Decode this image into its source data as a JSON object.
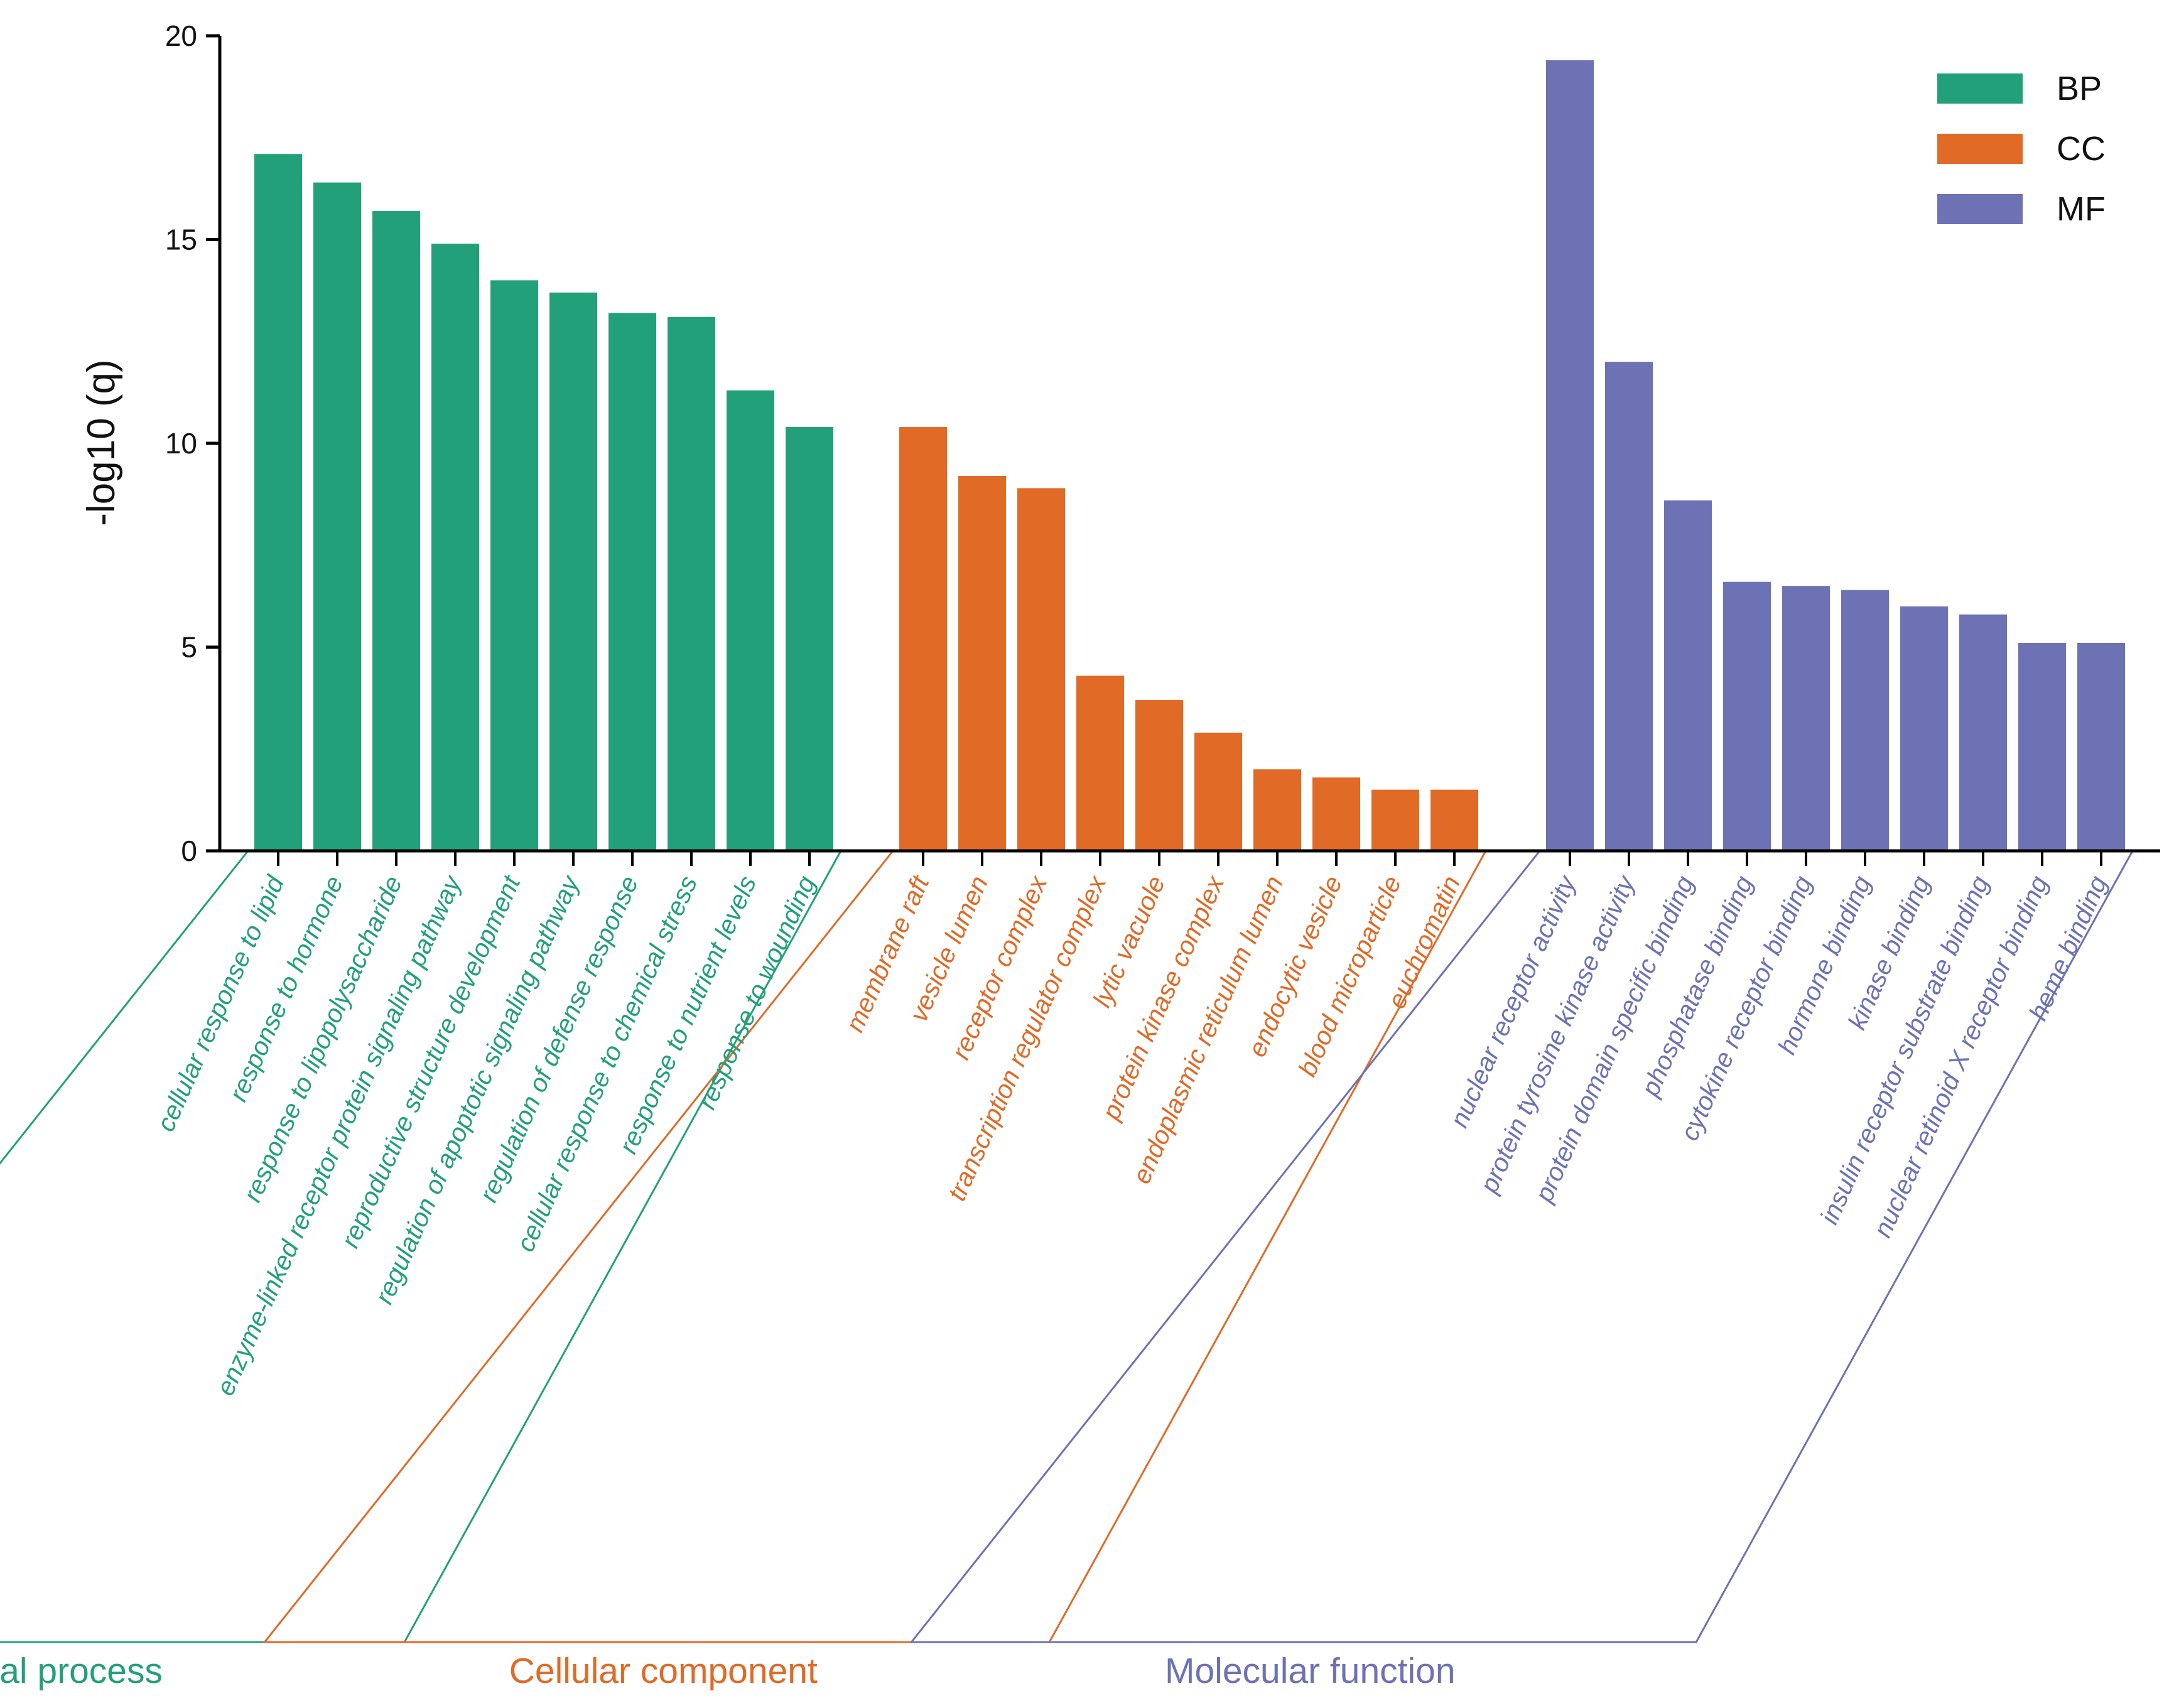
{
  "chart_data": {
    "type": "bar",
    "title": "",
    "xlabel": "",
    "ylabel": "-log10 (q)",
    "ylim": [
      0,
      20
    ],
    "yticks": [
      0,
      5,
      10,
      15,
      20
    ],
    "grid": false,
    "legend_position": "top-right",
    "legend": [
      {
        "label": "BP",
        "color": "#22a07a"
      },
      {
        "label": "CC",
        "color": "#e06a26"
      },
      {
        "label": "MF",
        "color": "#6c72b4"
      }
    ],
    "groups": [
      {
        "key": "BP",
        "name": "Biological process",
        "color": "#22a07a",
        "categories": [
          "cellular response to lipid",
          "response to hormone",
          "response to lipopolysaccharide",
          "enzyme-linked receptor protein signaling pathway",
          "reproductive structure development",
          "regulation of apoptotic signaling pathway",
          "regulation of defense response",
          "cellular response to chemical stress",
          "response to nutrient levels",
          "response to wounding"
        ],
        "values": [
          17.1,
          16.4,
          15.7,
          14.9,
          14.0,
          13.7,
          13.2,
          13.1,
          11.3,
          10.4
        ]
      },
      {
        "key": "CC",
        "name": "Cellular component",
        "color": "#e06a26",
        "categories": [
          "membrane raft",
          "vesicle lumen",
          "receptor complex",
          "transcription regulator complex",
          "lytic vacuole",
          "protein kinase complex",
          "endoplasmic reticulum lumen",
          "endocytic vesicle",
          "blood microparticle",
          "euchromatin"
        ],
        "values": [
          10.4,
          9.2,
          8.9,
          4.3,
          3.7,
          2.9,
          2.0,
          1.8,
          1.5,
          1.5
        ]
      },
      {
        "key": "MF",
        "name": "Molecular function",
        "color": "#6c72b4",
        "categories": [
          "nuclear receptor activity",
          "protein tyrosine kinase activity",
          "protein domain specific binding",
          "phosphatase binding",
          "cytokine receptor binding",
          "hormone binding",
          "kinase binding",
          "insulin receptor substrate binding",
          "nuclear retinoid X receptor binding",
          "heme binding"
        ],
        "values": [
          19.4,
          12.0,
          8.6,
          6.6,
          6.5,
          6.4,
          6.0,
          5.8,
          5.1,
          5.1
        ]
      }
    ]
  }
}
